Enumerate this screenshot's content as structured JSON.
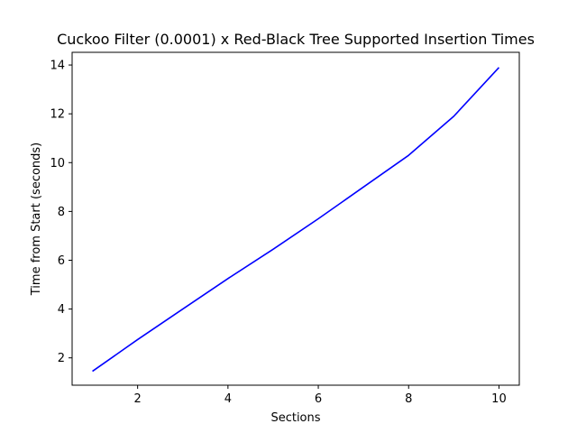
{
  "chart_data": {
    "type": "line",
    "title": "Cuckoo Filter (0.0001) x Red-Black Tree Supported Insertion Times",
    "xlabel": "Sections",
    "ylabel": "Time from Start (seconds)",
    "xlim": [
      0.55,
      10.45
    ],
    "ylim": [
      0.88,
      14.52
    ],
    "xticks": [
      2,
      4,
      6,
      8,
      10
    ],
    "yticks": [
      2,
      4,
      6,
      8,
      10,
      12,
      14
    ],
    "grid": false,
    "x": [
      1,
      2,
      3,
      4,
      5,
      6,
      7,
      8,
      9,
      10
    ],
    "series": [
      {
        "color": "#0000ff",
        "values": [
          1.45,
          2.75,
          4.0,
          5.25,
          6.45,
          7.7,
          9.0,
          10.3,
          11.9,
          13.9
        ]
      }
    ]
  }
}
